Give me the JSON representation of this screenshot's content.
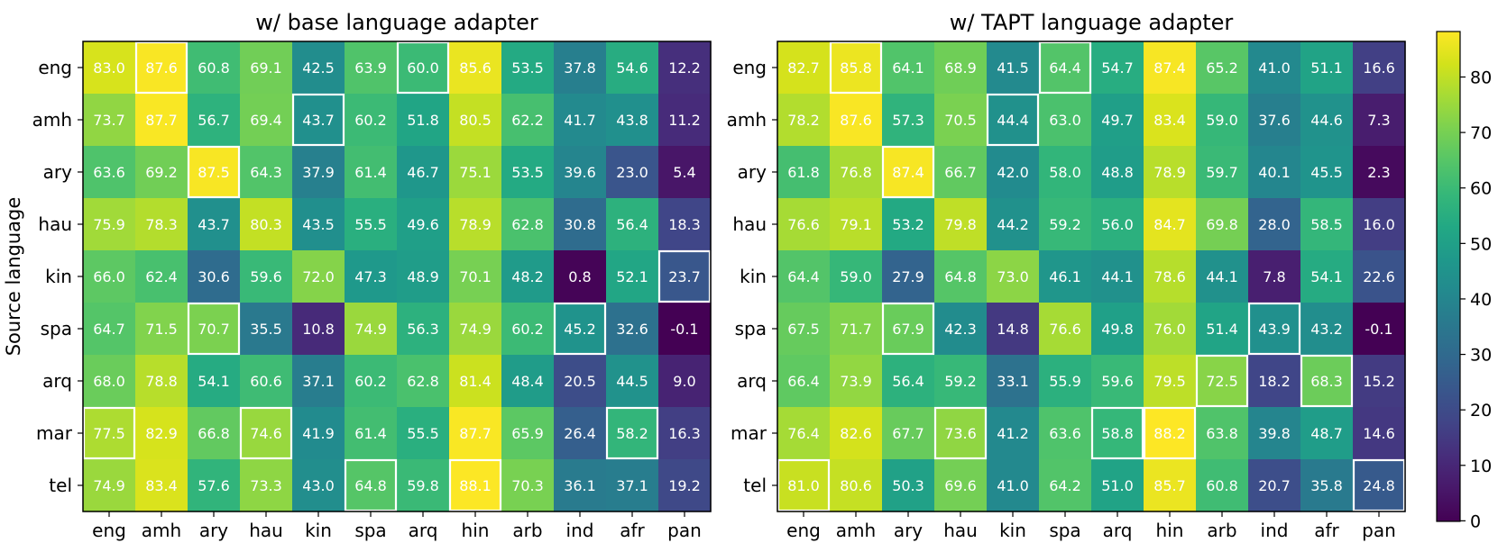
{
  "chart_data": [
    {
      "type": "heatmap",
      "title": "w/ base language adapter",
      "ylabel": "Source language",
      "xlabel": "",
      "columns": [
        "eng",
        "amh",
        "ary",
        "hau",
        "kin",
        "spa",
        "arq",
        "hin",
        "arb",
        "ind",
        "afr",
        "pan"
      ],
      "rows": [
        "eng",
        "amh",
        "ary",
        "hau",
        "kin",
        "spa",
        "arq",
        "mar",
        "tel"
      ],
      "values": [
        [
          83.0,
          87.6,
          60.8,
          69.1,
          42.5,
          63.9,
          60.0,
          85.6,
          53.5,
          37.8,
          54.6,
          12.2
        ],
        [
          73.7,
          87.7,
          56.7,
          69.4,
          43.7,
          60.2,
          51.8,
          80.5,
          62.2,
          41.7,
          43.8,
          11.2
        ],
        [
          63.6,
          69.2,
          87.5,
          64.3,
          37.9,
          61.4,
          46.7,
          75.1,
          53.5,
          39.6,
          23.0,
          5.4
        ],
        [
          75.9,
          78.3,
          43.7,
          80.3,
          43.5,
          55.5,
          49.6,
          78.9,
          62.8,
          30.8,
          56.4,
          18.3
        ],
        [
          66.0,
          62.4,
          30.6,
          59.6,
          72.0,
          47.3,
          48.9,
          70.1,
          48.2,
          0.8,
          52.1,
          23.7
        ],
        [
          64.7,
          71.5,
          70.7,
          35.5,
          10.8,
          74.9,
          56.3,
          74.9,
          60.2,
          45.2,
          32.6,
          -0.1
        ],
        [
          68.0,
          78.8,
          54.1,
          60.6,
          37.1,
          60.2,
          62.8,
          81.4,
          48.4,
          20.5,
          44.5,
          9.0
        ],
        [
          77.5,
          82.9,
          66.8,
          74.6,
          41.9,
          61.4,
          55.5,
          87.7,
          65.9,
          26.4,
          58.2,
          16.3
        ],
        [
          74.9,
          83.4,
          57.6,
          73.3,
          43.0,
          64.8,
          59.8,
          88.1,
          70.3,
          36.1,
          37.1,
          19.2
        ]
      ],
      "highlighted_cells": [
        [
          0,
          1
        ],
        [
          0,
          6
        ],
        [
          1,
          4
        ],
        [
          2,
          2
        ],
        [
          4,
          11
        ],
        [
          5,
          2
        ],
        [
          5,
          9
        ],
        [
          7,
          0
        ],
        [
          7,
          3
        ],
        [
          7,
          10
        ],
        [
          8,
          5
        ],
        [
          8,
          7
        ]
      ]
    },
    {
      "type": "heatmap",
      "title": "w/ TAPT language adapter",
      "ylabel": "",
      "xlabel": "",
      "columns": [
        "eng",
        "amh",
        "ary",
        "hau",
        "kin",
        "spa",
        "arq",
        "hin",
        "arb",
        "ind",
        "afr",
        "pan"
      ],
      "rows": [
        "eng",
        "amh",
        "ary",
        "hau",
        "kin",
        "spa",
        "arq",
        "mar",
        "tel"
      ],
      "values": [
        [
          82.7,
          85.8,
          64.1,
          68.9,
          41.5,
          64.4,
          54.7,
          87.4,
          65.2,
          41.0,
          51.1,
          16.6
        ],
        [
          78.2,
          87.6,
          57.3,
          70.5,
          44.4,
          63.0,
          49.7,
          83.4,
          59.0,
          37.6,
          44.6,
          7.3
        ],
        [
          61.8,
          76.8,
          87.4,
          66.7,
          42.0,
          58.0,
          48.8,
          78.9,
          59.7,
          40.1,
          45.5,
          2.3
        ],
        [
          76.6,
          79.1,
          53.2,
          79.8,
          44.2,
          59.2,
          56.0,
          84.7,
          69.8,
          28.0,
          58.5,
          16.0
        ],
        [
          64.4,
          59.0,
          27.9,
          64.8,
          73.0,
          46.1,
          44.1,
          78.6,
          44.1,
          7.8,
          54.1,
          22.6
        ],
        [
          67.5,
          71.7,
          67.9,
          42.3,
          14.8,
          76.6,
          49.8,
          76.0,
          51.4,
          43.9,
          43.2,
          -0.1
        ],
        [
          66.4,
          73.9,
          56.4,
          59.2,
          33.1,
          55.9,
          59.6,
          79.5,
          72.5,
          18.2,
          68.3,
          15.2
        ],
        [
          76.4,
          82.6,
          67.7,
          73.6,
          41.2,
          63.6,
          58.8,
          88.2,
          63.8,
          39.8,
          48.7,
          14.6
        ],
        [
          81.0,
          80.6,
          50.3,
          69.6,
          41.0,
          64.2,
          51.0,
          85.7,
          60.8,
          20.7,
          35.8,
          24.8
        ]
      ],
      "highlighted_cells": [
        [
          0,
          1
        ],
        [
          0,
          5
        ],
        [
          1,
          4
        ],
        [
          2,
          2
        ],
        [
          5,
          2
        ],
        [
          5,
          9
        ],
        [
          6,
          8
        ],
        [
          6,
          10
        ],
        [
          7,
          3
        ],
        [
          7,
          6
        ],
        [
          7,
          7
        ],
        [
          8,
          0
        ],
        [
          8,
          11
        ]
      ]
    }
  ],
  "colorbar": {
    "ticks": [
      0,
      10,
      20,
      30,
      40,
      50,
      60,
      70,
      80
    ],
    "vmin": -0.1,
    "vmax": 88.2,
    "colormap": "viridis"
  },
  "colors": {
    "highlight_border": "#ffffff",
    "axis": "#000000"
  }
}
